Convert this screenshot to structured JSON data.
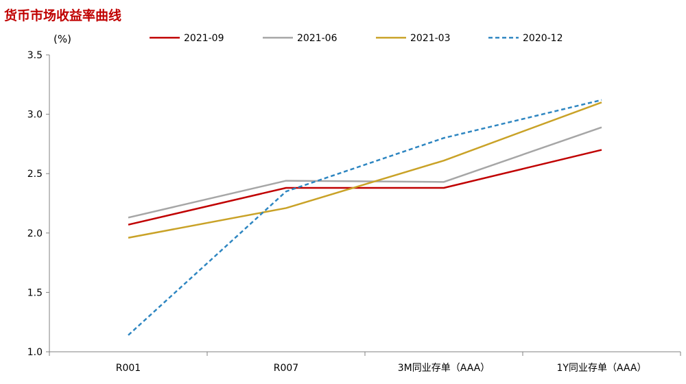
{
  "chart_data": {
    "type": "line",
    "title": "货币市场收益率曲线",
    "unit_label": "(%)",
    "categories": [
      "R001",
      "R007",
      "3M同业存单（AAA）",
      "1Y同业存单（AAA）"
    ],
    "ylim": [
      1.0,
      3.5
    ],
    "yticks": [
      "3.5",
      "3.0",
      "2.5",
      "2.0",
      "1.5",
      "1.0"
    ],
    "grid": false,
    "legend_position": "top",
    "series": [
      {
        "name": "2021-09",
        "values": [
          2.07,
          2.38,
          2.38,
          2.7
        ],
        "color": "#c00000",
        "dash": "solid"
      },
      {
        "name": "2021-06",
        "values": [
          2.13,
          2.44,
          2.43,
          2.89
        ],
        "color": "#a6a6a6",
        "dash": "solid"
      },
      {
        "name": "2021-03",
        "values": [
          1.96,
          2.21,
          2.61,
          3.1
        ],
        "color": "#c9a227",
        "dash": "solid"
      },
      {
        "name": "2020-12",
        "values": [
          1.14,
          2.35,
          2.8,
          3.12
        ],
        "color": "#2e86c1",
        "dash": "dashed"
      }
    ]
  }
}
